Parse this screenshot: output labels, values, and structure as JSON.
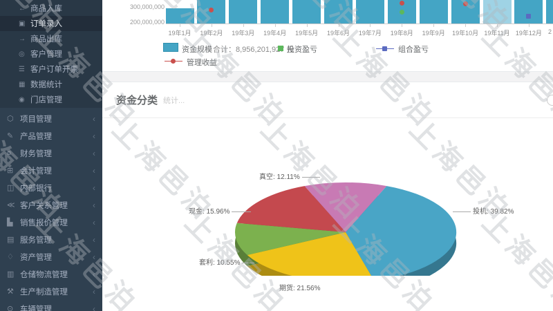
{
  "watermark": {
    "text": "上海邑泊"
  },
  "sidebar": {
    "chevron": "‹",
    "submenu_items": [
      {
        "icon": "goods-inbound-icon",
        "glyph": "←",
        "label": "商品入库",
        "active": false
      },
      {
        "icon": "order-entry-icon",
        "glyph": "▣",
        "label": "订单录入",
        "active": true
      },
      {
        "icon": "goods-outbound-icon",
        "glyph": "→",
        "label": "商品出库",
        "active": false
      },
      {
        "icon": "customer-icon",
        "glyph": "◎",
        "label": "客户管理",
        "active": false
      },
      {
        "icon": "customer-invoice-icon",
        "glyph": "☰",
        "label": "客户订单开票",
        "active": false
      },
      {
        "icon": "data-stats-icon",
        "glyph": "▦",
        "label": "数据统计",
        "active": false
      },
      {
        "icon": "store-icon",
        "glyph": "◉",
        "label": "门店管理",
        "active": false
      }
    ],
    "group_items": [
      {
        "icon": "project-icon",
        "glyph": "⬡",
        "label": "项目管理"
      },
      {
        "icon": "product-icon",
        "glyph": "✎",
        "label": "产品管理"
      },
      {
        "icon": "finance-icon",
        "glyph": "¤",
        "label": "财务管理"
      },
      {
        "icon": "accounting-icon",
        "glyph": "⊞",
        "label": "会计管理"
      },
      {
        "icon": "internal-bank-icon",
        "glyph": "◫",
        "label": "内部银行"
      },
      {
        "icon": "crm-icon",
        "glyph": "≪",
        "label": "客户关系管理"
      },
      {
        "icon": "sales-quote-icon",
        "glyph": "▙",
        "label": "销售报价管理"
      },
      {
        "icon": "service-icon",
        "glyph": "▤",
        "label": "服务管理"
      },
      {
        "icon": "asset-icon",
        "glyph": "♢",
        "label": "资产管理"
      },
      {
        "icon": "warehouse-logistics-icon",
        "glyph": "▥",
        "label": "仓储物流管理"
      },
      {
        "icon": "manufacturing-icon",
        "glyph": "⚒",
        "label": "生产制造管理"
      },
      {
        "icon": "vehicle-icon",
        "glyph": "⊙",
        "label": "车辆管理"
      }
    ]
  },
  "capital_chart": {
    "y_axis_labels": [
      "300,000,000",
      "200,000,000"
    ],
    "months": [
      "19年1月",
      "19年2月",
      "19年3月",
      "19年4月",
      "19年5月",
      "19年6月",
      "19年7月",
      "19年8月",
      "19年9月",
      "19年10月",
      "19年11月",
      "19年12月"
    ],
    "next_month_partial": "2",
    "legend": {
      "fund_scale": "资金规模",
      "total": "合计：8,956,201,927 元",
      "investment_pnl": "投资盈亏",
      "portfolio_pnl": "组合盈亏",
      "management_income": "管理收益"
    },
    "colors": {
      "bar": "#44a5c5",
      "bar_highlight": "#9fd3e5",
      "investment": "#5cb85c",
      "portfolio": "#5b6bc0",
      "management": "#c9504d"
    }
  },
  "pie_section": {
    "title": "资金分类",
    "subtitle": "统计...",
    "help_icon": "help-circle-icon"
  },
  "chart_data": [
    {
      "type": "bar",
      "x": [
        "19年1月",
        "19年2月",
        "19年3月",
        "19年4月",
        "19年5月",
        "19年6月",
        "19年7月",
        "19年8月",
        "19年9月",
        "19年10月",
        "19年11月",
        "19年12月"
      ],
      "series": [
        {
          "name": "资金规模",
          "color": "#44a5c5",
          "values": [
            280000000,
            null,
            null,
            null,
            null,
            null,
            null,
            null,
            null,
            null,
            null,
            null
          ]
        }
      ],
      "y_tick_labels": [
        "300,000,000",
        "200,000,000"
      ],
      "y_tick_values": [
        300000000,
        200000000
      ],
      "total_label": "合计：8,956,201,927 元",
      "highlight_index": 10,
      "note": "柱顶被页面上缘裁切，仅19年1月柱顶可见(约2.8亿)；19年11月柱为浅色高亮",
      "markers": [
        {
          "series": "管理收益",
          "x": "19年2月"
        },
        {
          "series": "管理收益",
          "x": "19年8月"
        },
        {
          "series": "投资盈亏",
          "x": "19年8月"
        },
        {
          "series": "管理收益",
          "x": "19年10月"
        },
        {
          "series": "组合盈亏",
          "x": "19年12月"
        }
      ],
      "legend_entries": [
        "资金规模",
        "投资盈亏",
        "组合盈亏",
        "管理收益"
      ]
    },
    {
      "type": "pie",
      "title": "资金分类",
      "start_angle_deg": -21.8,
      "slices": [
        {
          "label": "真空",
          "percent": 12.11,
          "color": "#c87ab4"
        },
        {
          "label": "投机",
          "percent": 39.82,
          "color": "#49a5c6"
        },
        {
          "label": "期货",
          "percent": 21.56,
          "color": "#efc319"
        },
        {
          "label": "套利",
          "percent": 10.55,
          "color": "#7cb14e"
        },
        {
          "label": "现金",
          "percent": 15.96,
          "color": "#c4494e"
        }
      ]
    }
  ]
}
